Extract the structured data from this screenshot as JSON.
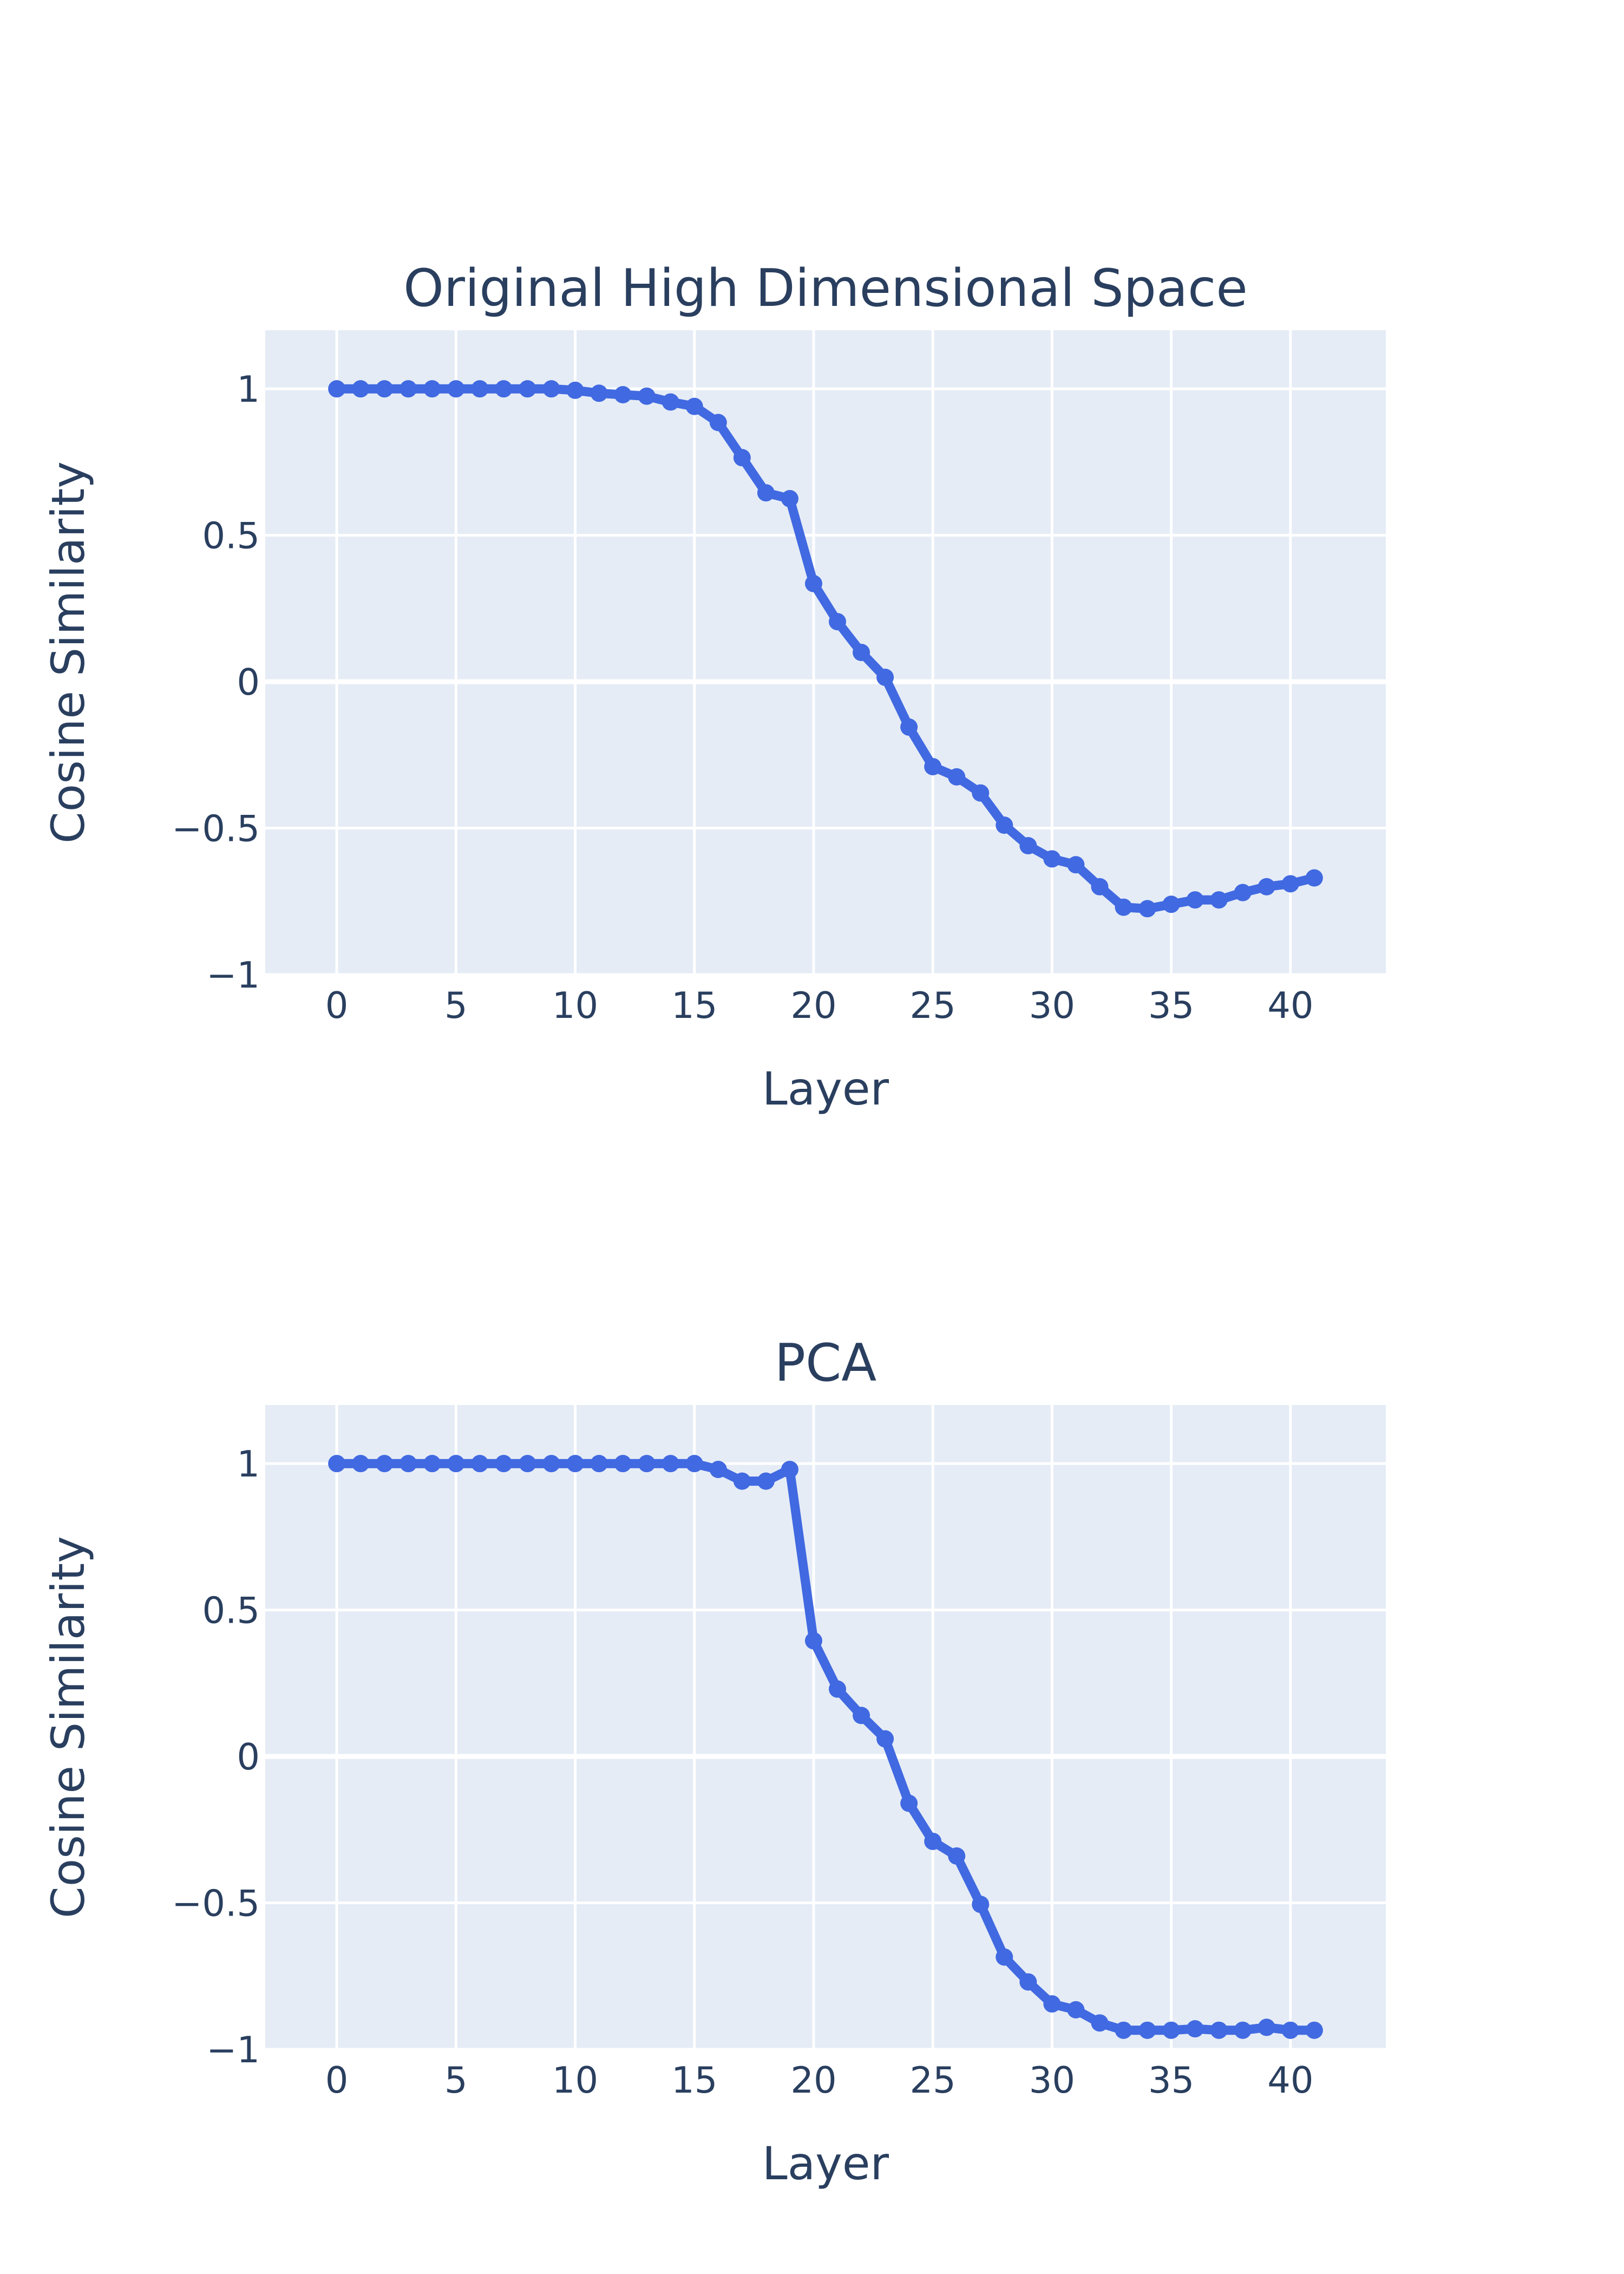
{
  "chart_data": [
    {
      "type": "line",
      "title": "Original High Dimensional Space",
      "xlabel": "Layer",
      "ylabel": "Cosine Similarity",
      "xlim": [
        -3,
        44
      ],
      "ylim": [
        -1,
        1.2
      ],
      "x_ticks": [
        0,
        5,
        10,
        15,
        20,
        25,
        30,
        35,
        40
      ],
      "y_ticks": [
        -1,
        -0.5,
        0,
        0.5,
        1
      ],
      "y_tick_labels": [
        "−1",
        "−0.5",
        "0",
        "0.5",
        "1"
      ],
      "grid": true,
      "legend": "none",
      "colors": {
        "line": "#4169e1",
        "plot_bg": "#e5ecf6",
        "grid": "#ffffff",
        "text": "#2a3f5f"
      },
      "series": [
        {
          "x": [
            0,
            1,
            2,
            3,
            4,
            5,
            6,
            7,
            8,
            9,
            10,
            11,
            12,
            13,
            14,
            15,
            16,
            17,
            18,
            19,
            20,
            21,
            22,
            23,
            24,
            25,
            26,
            27,
            28,
            29,
            30,
            31,
            32,
            33,
            34,
            35,
            36,
            37,
            38,
            39,
            40,
            41
          ],
          "values": [
            1.0,
            1.0,
            1.0,
            1.0,
            1.0,
            1.0,
            1.0,
            1.0,
            1.0,
            1.0,
            0.995,
            0.985,
            0.98,
            0.975,
            0.955,
            0.94,
            0.885,
            0.765,
            0.645,
            0.625,
            0.335,
            0.205,
            0.1,
            0.015,
            -0.155,
            -0.29,
            -0.325,
            -0.38,
            -0.49,
            -0.56,
            -0.605,
            -0.625,
            -0.7,
            -0.77,
            -0.775,
            -0.76,
            -0.745,
            -0.745,
            -0.72,
            -0.7,
            -0.69,
            -0.67
          ]
        }
      ]
    },
    {
      "type": "line",
      "title": "PCA",
      "xlabel": "Layer",
      "ylabel": "Cosine Similarity",
      "xlim": [
        -3,
        44
      ],
      "ylim": [
        -1,
        1.2
      ],
      "x_ticks": [
        0,
        5,
        10,
        15,
        20,
        25,
        30,
        35,
        40
      ],
      "y_ticks": [
        -1,
        -0.5,
        0,
        0.5,
        1
      ],
      "y_tick_labels": [
        "−1",
        "−0.5",
        "0",
        "0.5",
        "1"
      ],
      "grid": true,
      "legend": "none",
      "colors": {
        "line": "#4169e1",
        "plot_bg": "#e5ecf6",
        "grid": "#ffffff",
        "text": "#2a3f5f"
      },
      "series": [
        {
          "x": [
            0,
            1,
            2,
            3,
            4,
            5,
            6,
            7,
            8,
            9,
            10,
            11,
            12,
            13,
            14,
            15,
            16,
            17,
            18,
            19,
            20,
            21,
            22,
            23,
            24,
            25,
            26,
            27,
            28,
            29,
            30,
            31,
            32,
            33,
            34,
            35,
            36,
            37,
            38,
            39,
            40,
            41
          ],
          "values": [
            1.0,
            1.0,
            1.0,
            1.0,
            1.0,
            1.0,
            1.0,
            1.0,
            1.0,
            1.0,
            1.0,
            1.0,
            1.0,
            1.0,
            1.0,
            1.0,
            0.98,
            0.94,
            0.94,
            0.98,
            0.395,
            0.23,
            0.14,
            0.06,
            -0.16,
            -0.29,
            -0.34,
            -0.505,
            -0.685,
            -0.77,
            -0.845,
            -0.865,
            -0.91,
            -0.935,
            -0.935,
            -0.935,
            -0.93,
            -0.935,
            -0.935,
            -0.925,
            -0.935,
            -0.935
          ]
        }
      ]
    }
  ]
}
